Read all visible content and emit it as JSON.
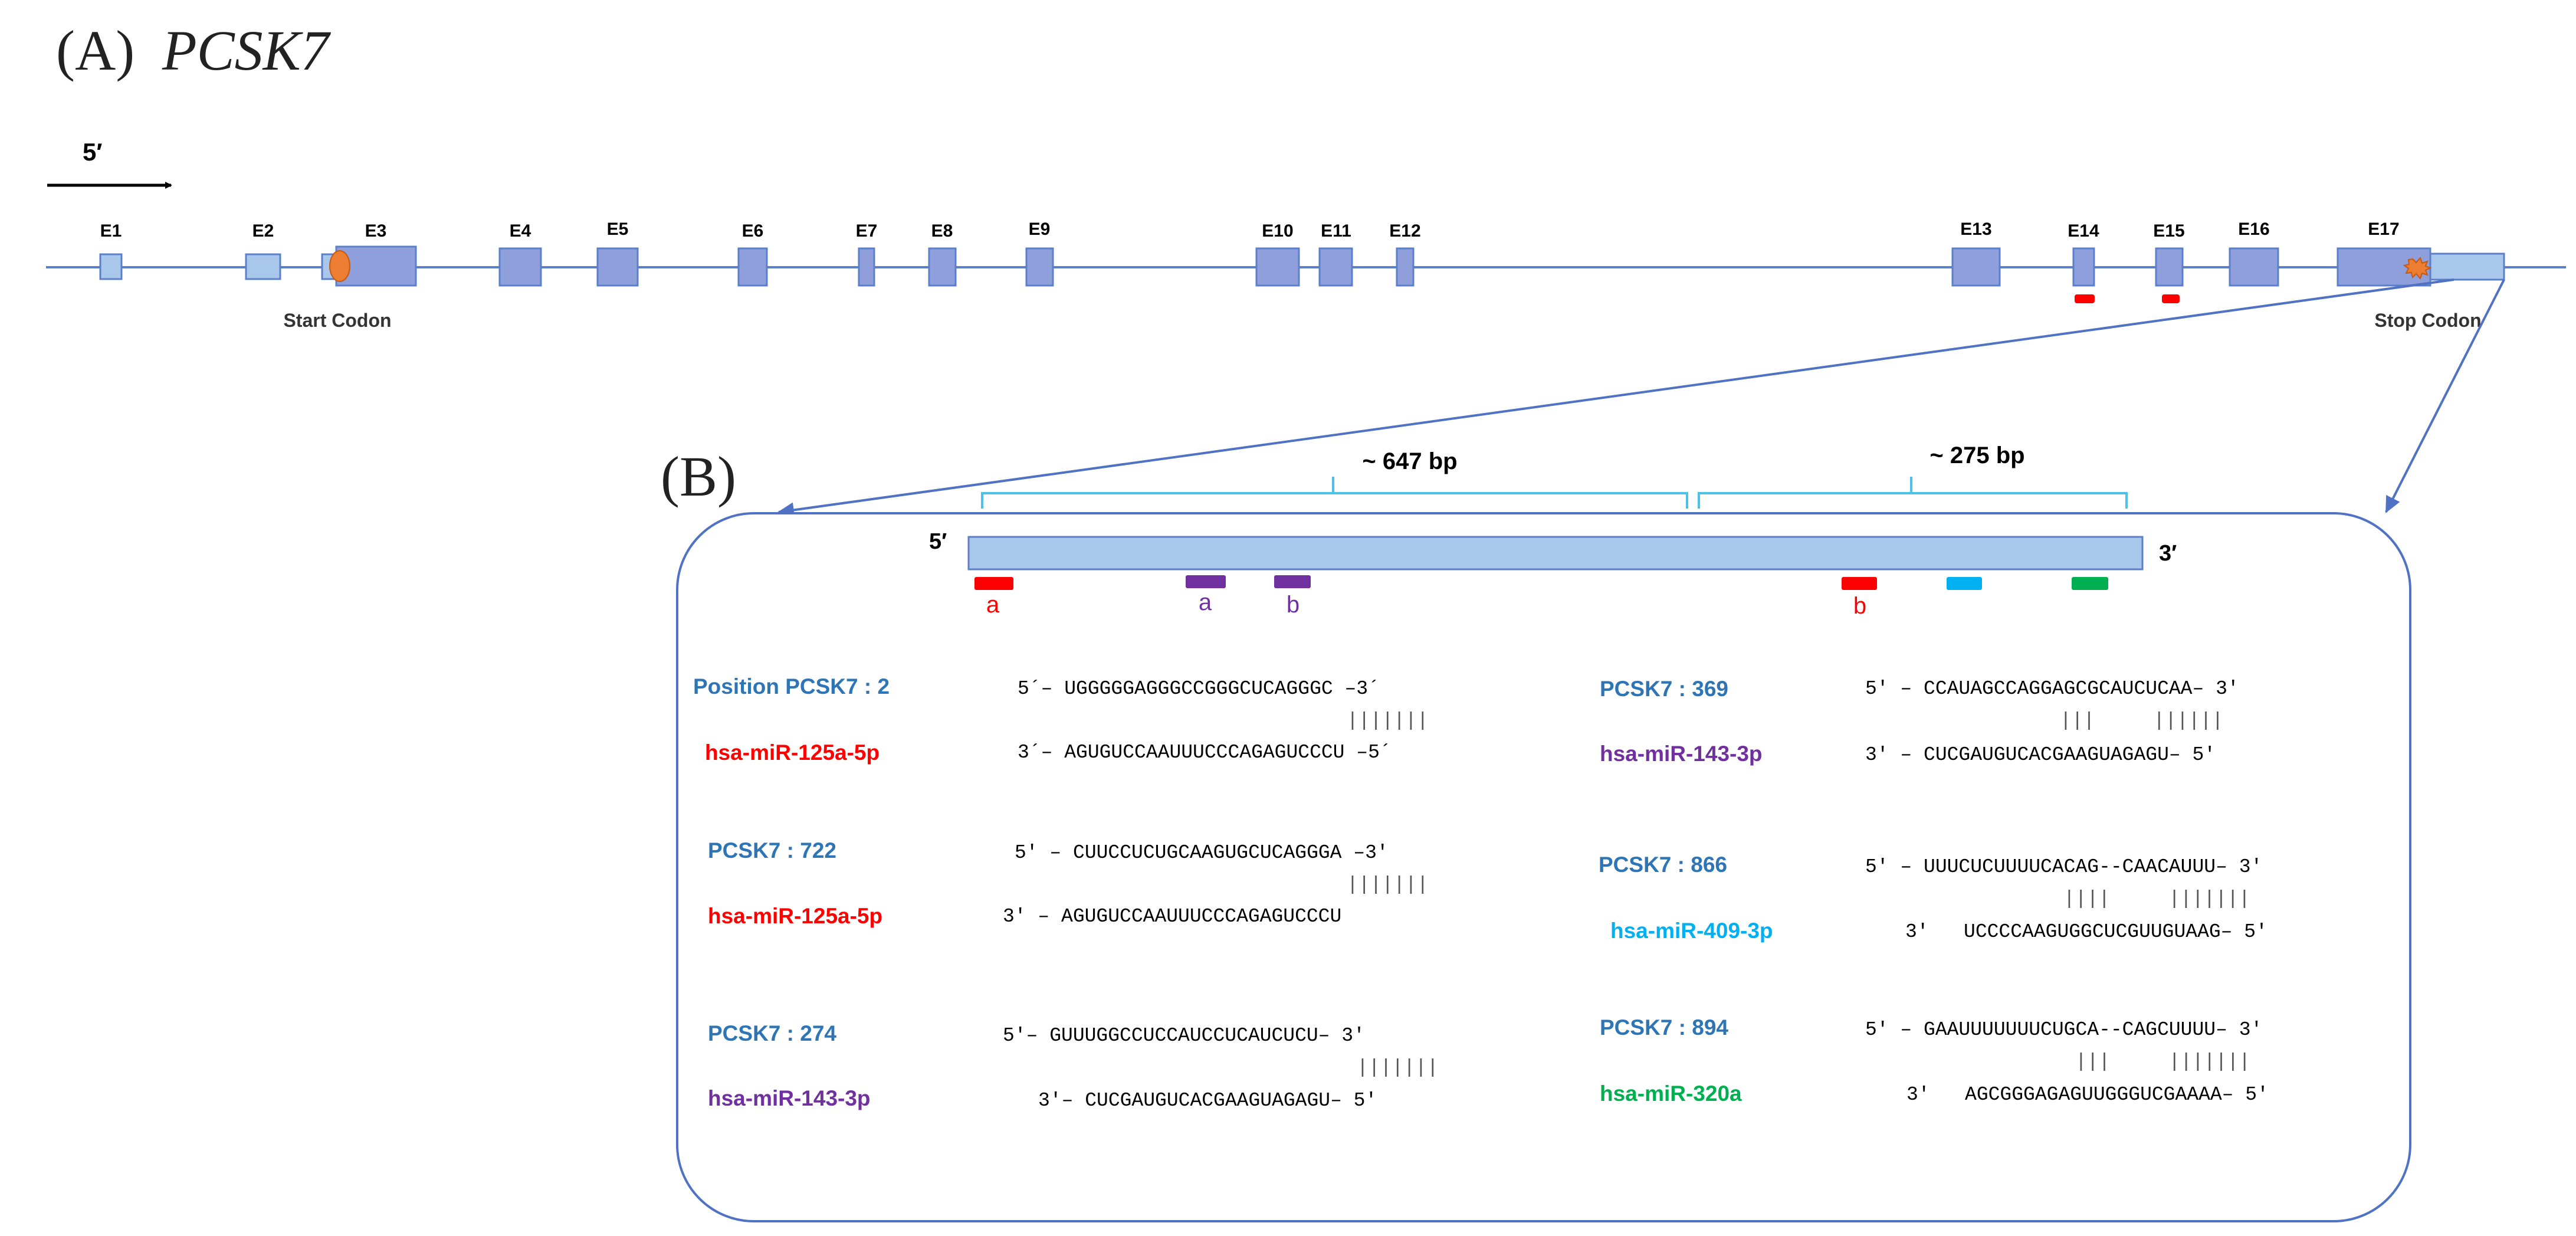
{
  "panel_a": {
    "label": "(A)",
    "gene": "PCSK7",
    "direction_label": "5′",
    "exons": [
      {
        "label": "E1"
      },
      {
        "label": "E2"
      },
      {
        "label": "E3"
      },
      {
        "label": "E4"
      },
      {
        "label": "E5"
      },
      {
        "label": "E6"
      },
      {
        "label": "E7"
      },
      {
        "label": "E8"
      },
      {
        "label": "E9"
      },
      {
        "label": "E10"
      },
      {
        "label": "E11"
      },
      {
        "label": "E12"
      },
      {
        "label": "E13"
      },
      {
        "label": "E14"
      },
      {
        "label": "E15"
      },
      {
        "label": "E16"
      },
      {
        "label": "E17"
      }
    ],
    "start_codon": "Start Codon",
    "stop_codon": "Stop Codon"
  },
  "panel_b": {
    "label": "(B)",
    "span_1": "~ 647 bp",
    "span_2": "~ 275 bp",
    "utr_5": "5′",
    "utr_3": "3′",
    "site_labels": {
      "red_a": "a",
      "purple_a": "a",
      "purple_b": "b",
      "red_b": "b"
    },
    "alignments": [
      {
        "position": "Position PCSK7 : 2",
        "mirna": "hsa-miR-125a-5p",
        "mirna_color": "#ff0000",
        "target_seq": "5´– UGGGGGAGGGCCGGGCUCAGGGC –3´",
        "pairs": "|||||||",
        "mirna_seq": "3´– AGUGUCCAAUUUCCCAGAGUCCCU –5´"
      },
      {
        "position": "PCSK7 :  369",
        "mirna": "hsa-miR-143-3p",
        "mirna_color": "#7030a0",
        "target_seq": "5' – CCAUAGCCAGGAGCGCAUCUCAA– 3'",
        "pairs": "|||     ||||||",
        "mirna_seq": "3' – CUCGAUGUCACGAAGUAGAGU– 5'"
      },
      {
        "position": "PCSK7 :  722",
        "mirna": "hsa-miR-125a-5p",
        "mirna_color": "#ff0000",
        "target_seq": "5' – CUUCCUCUGCAAGUGCUCAGGGA –3'",
        "pairs": "|||||||",
        "mirna_seq": "3' – AGUGUCCAAUUUCCCAGAGUCCCU"
      },
      {
        "position": "PCSK7 : 866",
        "mirna": "hsa-miR-409-3p",
        "mirna_color": "#00b0f0",
        "target_seq": "5' – UUUCUCUUUUCACAG--CAACAUUU– 3'",
        "pairs": "||||     |||||||",
        "mirna_seq": "3'   UCCCCAAGUGGCUCGUUGUAAG– 5'"
      },
      {
        "position": "PCSK7 :  274",
        "mirna": "hsa-miR-143-3p",
        "mirna_color": "#7030a0",
        "target_seq": "5'– GUUUGGCCUCCAUCCUCAUCUCU– 3'",
        "pairs": "|||||||",
        "mirna_seq": "3'– CUCGAUGUCACGAAGUAGAGU– 5'"
      },
      {
        "position": "PCSK7 : 894",
        "mirna": "hsa-miR-320a",
        "mirna_color": "#00b050",
        "target_seq": "5' – GAAUUUUUUUCUGCA--CAGCUUUU– 3'",
        "pairs": "|||     |||||||",
        "mirna_seq": "3'   AGCGGGAGAGUUGGGUCGAAAA– 5'"
      }
    ]
  },
  "colors": {
    "gene_line": "#5b7fc8",
    "exon_fill": "#8e9fdc",
    "utr_fill": "#a9c7ea",
    "position_text": "#2e75b6",
    "bracket": "#4fc1e9",
    "start_marker": "#ed7d31",
    "site_red": "#ff0000",
    "site_purple": "#7030a0",
    "site_cyan": "#00b0f0",
    "site_green": "#00b050"
  }
}
